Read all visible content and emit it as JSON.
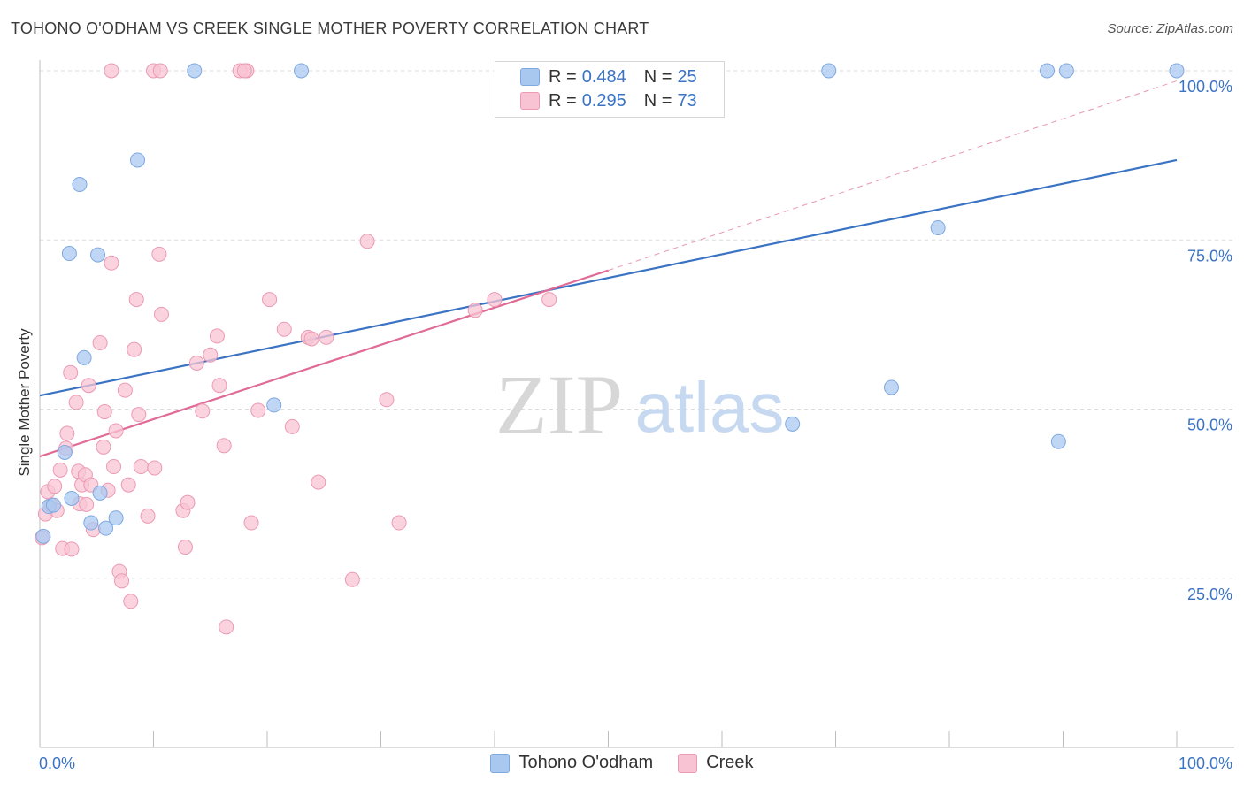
{
  "title": "TOHONO O'ODHAM VS CREEK SINGLE MOTHER POVERTY CORRELATION CHART",
  "source": "Source: ZipAtlas.com",
  "watermark": {
    "zip": "ZIP",
    "atlas": "atlas"
  },
  "legend": {
    "rows": [
      {
        "r_label": "R =",
        "r_value": "0.484",
        "n_label": "N =",
        "n_value": "25",
        "color": "#a9c8f0",
        "border": "#7fa8e0"
      },
      {
        "r_label": "R =",
        "r_value": "0.295",
        "n_label": "N =",
        "n_value": "73",
        "color": "#f8c4d4",
        "border": "#ec9ab4"
      }
    ]
  },
  "bottom_legend": [
    {
      "label": "Tohono O'odham",
      "color": "#a9c8f0",
      "border": "#7fa8e0"
    },
    {
      "label": "Creek",
      "color": "#f8c4d4",
      "border": "#ec9ab4"
    }
  ],
  "chart_data": {
    "type": "scatter",
    "title": "TOHONO O'ODHAM VS CREEK SINGLE MOTHER POVERTY CORRELATION CHART",
    "xlabel": "",
    "ylabel": "Single Mother Poverty",
    "xlim": [
      0,
      100
    ],
    "ylim": [
      0,
      100
    ],
    "x_tick_labels": [
      "0.0%",
      "100.0%"
    ],
    "y_tick_labels": [
      "25.0%",
      "50.0%",
      "75.0%",
      "100.0%"
    ],
    "y_ticks": [
      25,
      50,
      75,
      100
    ],
    "grid": true,
    "legend_position": "top-center",
    "series": [
      {
        "name": "Tohono O'odham",
        "color": "#7fa8e0",
        "fill": "#a9c8f0",
        "trend_color": "#3b73c4",
        "trend": {
          "x0": 0,
          "y0": 52.0,
          "x1": 100,
          "y1": 86.8
        },
        "points": [
          [
            0.3,
            31.2
          ],
          [
            0.8,
            35.6
          ],
          [
            1.2,
            35.8
          ],
          [
            2.2,
            43.6
          ],
          [
            2.6,
            73.0
          ],
          [
            2.8,
            36.8
          ],
          [
            3.5,
            83.2
          ],
          [
            3.9,
            57.6
          ],
          [
            4.5,
            33.2
          ],
          [
            5.1,
            72.8
          ],
          [
            5.3,
            37.6
          ],
          [
            5.8,
            32.4
          ],
          [
            6.7,
            33.9
          ],
          [
            8.6,
            86.8
          ],
          [
            13.6,
            100
          ],
          [
            23.0,
            100
          ],
          [
            20.6,
            50.6
          ],
          [
            69.4,
            100
          ],
          [
            88.6,
            100
          ],
          [
            90.3,
            100
          ],
          [
            100,
            100
          ],
          [
            79.0,
            76.8
          ],
          [
            74.9,
            53.2
          ],
          [
            66.2,
            47.8
          ],
          [
            89.6,
            45.2
          ]
        ]
      },
      {
        "name": "Creek",
        "color": "#ec9ab4",
        "fill": "#f8c4d4",
        "trend_color": "#e06b96",
        "trend": {
          "x0": 0,
          "y0": 43.0,
          "x1": 50,
          "y1": 70.5
        },
        "trend_ext": {
          "x0": 50,
          "y0": 70.5,
          "x1": 100,
          "y1": 98.5
        },
        "points": [
          [
            0.2,
            31.0
          ],
          [
            0.5,
            34.5
          ],
          [
            0.7,
            37.8
          ],
          [
            1.0,
            35.8
          ],
          [
            1.3,
            38.6
          ],
          [
            1.5,
            35.0
          ],
          [
            1.8,
            41.0
          ],
          [
            2.0,
            29.4
          ],
          [
            2.3,
            44.2
          ],
          [
            2.4,
            46.4
          ],
          [
            2.7,
            55.4
          ],
          [
            2.8,
            29.3
          ],
          [
            3.2,
            51.0
          ],
          [
            3.4,
            40.8
          ],
          [
            3.5,
            36.0
          ],
          [
            3.7,
            38.8
          ],
          [
            4.0,
            40.3
          ],
          [
            4.1,
            35.9
          ],
          [
            4.3,
            53.5
          ],
          [
            4.5,
            38.8
          ],
          [
            4.7,
            32.2
          ],
          [
            5.3,
            59.8
          ],
          [
            5.6,
            44.4
          ],
          [
            5.7,
            49.6
          ],
          [
            6.0,
            38.0
          ],
          [
            6.3,
            71.6
          ],
          [
            6.5,
            41.5
          ],
          [
            6.7,
            46.8
          ],
          [
            7.0,
            26.0
          ],
          [
            7.2,
            24.6
          ],
          [
            7.5,
            52.8
          ],
          [
            7.8,
            38.8
          ],
          [
            8.0,
            21.6
          ],
          [
            8.3,
            58.8
          ],
          [
            8.5,
            66.2
          ],
          [
            8.7,
            49.2
          ],
          [
            8.9,
            41.5
          ],
          [
            9.5,
            34.2
          ],
          [
            10.1,
            41.3
          ],
          [
            10.5,
            72.9
          ],
          [
            10.7,
            64.0
          ],
          [
            12.6,
            35.0
          ],
          [
            12.8,
            29.6
          ],
          [
            13.0,
            36.2
          ],
          [
            13.8,
            56.8
          ],
          [
            14.3,
            49.7
          ],
          [
            15.0,
            58.0
          ],
          [
            15.6,
            60.8
          ],
          [
            15.8,
            53.5
          ],
          [
            16.2,
            44.6
          ],
          [
            16.4,
            17.8
          ],
          [
            18.2,
            100
          ],
          [
            18.6,
            33.2
          ],
          [
            19.2,
            49.8
          ],
          [
            20.2,
            66.2
          ],
          [
            21.5,
            61.8
          ],
          [
            22.2,
            47.4
          ],
          [
            23.6,
            60.6
          ],
          [
            23.9,
            60.4
          ],
          [
            24.5,
            39.2
          ],
          [
            25.2,
            60.6
          ],
          [
            27.5,
            24.8
          ],
          [
            28.8,
            74.8
          ],
          [
            30.5,
            51.4
          ],
          [
            31.6,
            33.2
          ],
          [
            38.3,
            64.6
          ],
          [
            40.0,
            66.2
          ],
          [
            44.8,
            66.2
          ],
          [
            6.3,
            100
          ],
          [
            10.0,
            100
          ],
          [
            10.6,
            100
          ],
          [
            17.6,
            100
          ],
          [
            18.0,
            100
          ]
        ]
      }
    ]
  }
}
